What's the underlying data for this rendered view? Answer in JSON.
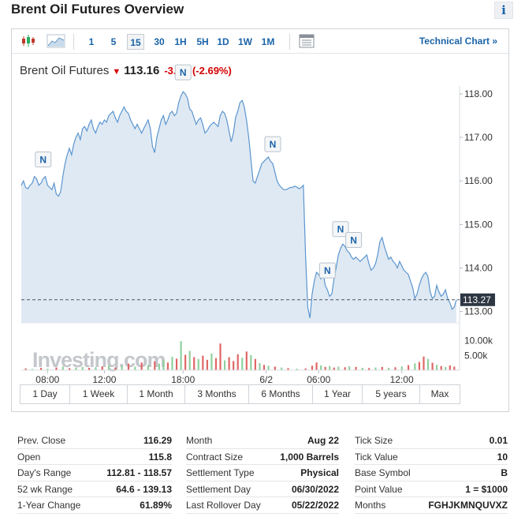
{
  "page": {
    "title": "Brent Oil Futures Overview",
    "info_label": "i"
  },
  "toolbar": {
    "intervals": [
      "1",
      "5",
      "15",
      "30",
      "1H",
      "5H",
      "1D",
      "1W",
      "1M"
    ],
    "active_interval": "15",
    "technical_chart_label": "Technical Chart »",
    "accent": "#1a63a8"
  },
  "quote": {
    "name": "Brent Oil Futures",
    "price": "113.16",
    "change": "-3.13",
    "change_pct": "(-2.69%)",
    "down_color": "#d40000"
  },
  "chart_data": {
    "type": "area",
    "y_ticks": [
      "118.00",
      "117.00",
      "116.00",
      "115.00",
      "114.00",
      "113.00"
    ],
    "ylim": [
      112.74,
      118.18
    ],
    "last_value": 113.27,
    "last_value_label": "113.27",
    "x_ticks": [
      "08:00",
      "12:00",
      "18:00",
      "6/2",
      "06:00",
      "12:00"
    ],
    "volume_ticks": [
      "10.00k",
      "5.00k"
    ],
    "watermark": "Investing.com",
    "news_marker_label": "N",
    "series": [
      {
        "values": [
          115.9,
          116.0,
          115.85,
          115.82,
          115.9,
          115.95,
          116.1,
          116.05,
          115.9,
          115.95,
          116.05,
          116.1,
          115.9,
          115.85,
          115.8,
          115.95,
          115.7,
          115.65,
          115.75,
          116.1,
          116.4,
          116.6,
          116.75,
          116.6,
          116.85,
          117.0,
          117.1,
          116.95,
          117.2,
          117.25,
          117.15,
          117.3,
          117.4,
          117.2,
          117.1,
          117.25,
          117.35,
          117.3,
          117.4,
          117.35,
          117.5,
          117.55,
          117.6,
          117.45,
          117.35,
          117.5,
          117.6,
          117.7,
          117.6,
          117.55,
          117.4,
          117.3,
          117.2,
          117.3,
          117.2,
          117.1,
          117.2,
          117.3,
          117.4,
          117.2,
          116.8,
          116.65,
          117.0,
          117.2,
          117.4,
          117.5,
          117.3,
          117.4,
          117.55,
          117.6,
          117.5,
          117.55,
          117.8,
          117.95,
          118.05,
          118.0,
          117.9,
          117.65,
          117.6,
          117.45,
          117.3,
          117.4,
          117.45,
          117.3,
          117.1,
          117.15,
          117.25,
          117.3,
          117.35,
          117.3,
          117.25,
          117.5,
          117.6,
          117.55,
          117.4,
          117.15,
          116.9,
          117.1,
          117.45,
          117.6,
          117.8,
          117.85,
          117.7,
          117.4,
          117.0,
          116.5,
          116.0,
          115.95,
          116.1,
          116.25,
          116.4,
          116.45,
          116.5,
          116.55,
          116.45,
          116.4,
          116.2,
          116.0,
          115.9,
          115.85,
          115.8,
          115.8,
          115.82,
          115.85,
          115.85,
          115.88,
          115.86,
          115.82,
          115.85,
          115.9,
          114.3,
          113.1,
          112.85,
          113.4,
          113.7,
          113.9,
          113.85,
          113.75,
          113.9,
          113.6,
          113.5,
          113.35,
          113.4,
          113.75,
          114.0,
          114.3,
          114.45,
          114.55,
          114.5,
          114.4,
          114.35,
          114.25,
          114.2,
          114.25,
          114.2,
          114.15,
          114.2,
          114.25,
          114.3,
          114.1,
          113.95,
          114.0,
          114.1,
          114.3,
          114.6,
          114.7,
          114.5,
          114.35,
          114.2,
          114.25,
          114.15,
          114.1,
          114.0,
          114.15,
          114.05,
          113.95,
          113.9,
          113.85,
          113.7,
          113.55,
          113.3,
          113.4,
          113.6,
          113.75,
          113.85,
          113.9,
          113.8,
          113.45,
          113.3,
          113.35,
          113.6,
          113.45,
          113.35,
          113.4,
          113.5,
          113.3,
          113.2,
          113.05,
          113.1,
          113.27
        ]
      }
    ],
    "news_markers": [
      {
        "x_index": 10,
        "label": "N"
      },
      {
        "x_index": 74,
        "label": "N"
      },
      {
        "x_index": 115,
        "label": "N"
      },
      {
        "x_index": 140,
        "label": "N"
      },
      {
        "x_index": 146,
        "label": "N"
      },
      {
        "x_index": 152,
        "label": "N"
      }
    ],
    "volume": {
      "ymax": 12000,
      "bars": [
        {
          "i": 2,
          "v": 600,
          "up": false
        },
        {
          "i": 5,
          "v": 400,
          "up": true
        },
        {
          "i": 9,
          "v": 800,
          "up": false
        },
        {
          "i": 12,
          "v": 500,
          "up": true
        },
        {
          "i": 16,
          "v": 900,
          "up": false
        },
        {
          "i": 19,
          "v": 1200,
          "up": true
        },
        {
          "i": 22,
          "v": 700,
          "up": false
        },
        {
          "i": 25,
          "v": 900,
          "up": true
        },
        {
          "i": 28,
          "v": 1100,
          "up": true
        },
        {
          "i": 31,
          "v": 800,
          "up": false
        },
        {
          "i": 34,
          "v": 1000,
          "up": true
        },
        {
          "i": 37,
          "v": 1300,
          "up": false
        },
        {
          "i": 40,
          "v": 1600,
          "up": true
        },
        {
          "i": 43,
          "v": 900,
          "up": false
        },
        {
          "i": 46,
          "v": 1400,
          "up": true
        },
        {
          "i": 49,
          "v": 2200,
          "up": false
        },
        {
          "i": 52,
          "v": 1200,
          "up": true
        },
        {
          "i": 55,
          "v": 2600,
          "up": false
        },
        {
          "i": 58,
          "v": 1800,
          "up": true
        },
        {
          "i": 61,
          "v": 3000,
          "up": false
        },
        {
          "i": 63,
          "v": 2200,
          "up": true
        },
        {
          "i": 65,
          "v": 3400,
          "up": true
        },
        {
          "i": 67,
          "v": 2600,
          "up": false
        },
        {
          "i": 69,
          "v": 4500,
          "up": true
        },
        {
          "i": 71,
          "v": 3900,
          "up": false
        },
        {
          "i": 73,
          "v": 9800,
          "up": true
        },
        {
          "i": 75,
          "v": 5200,
          "up": false
        },
        {
          "i": 77,
          "v": 6500,
          "up": true
        },
        {
          "i": 79,
          "v": 4400,
          "up": false
        },
        {
          "i": 81,
          "v": 3800,
          "up": true
        },
        {
          "i": 83,
          "v": 4900,
          "up": false
        },
        {
          "i": 85,
          "v": 3500,
          "up": false
        },
        {
          "i": 87,
          "v": 5600,
          "up": true
        },
        {
          "i": 89,
          "v": 4100,
          "up": false
        },
        {
          "i": 91,
          "v": 9000,
          "up": false
        },
        {
          "i": 93,
          "v": 3300,
          "up": true
        },
        {
          "i": 95,
          "v": 4400,
          "up": false
        },
        {
          "i": 97,
          "v": 3100,
          "up": false
        },
        {
          "i": 99,
          "v": 5400,
          "up": false
        },
        {
          "i": 101,
          "v": 4200,
          "up": true
        },
        {
          "i": 103,
          "v": 6300,
          "up": false
        },
        {
          "i": 105,
          "v": 5100,
          "up": true
        },
        {
          "i": 107,
          "v": 3800,
          "up": false
        },
        {
          "i": 109,
          "v": 2400,
          "up": true
        },
        {
          "i": 111,
          "v": 1800,
          "up": false
        },
        {
          "i": 113,
          "v": 1500,
          "up": true
        },
        {
          "i": 116,
          "v": 1200,
          "up": false
        },
        {
          "i": 119,
          "v": 900,
          "up": true
        },
        {
          "i": 122,
          "v": 700,
          "up": false
        },
        {
          "i": 126,
          "v": 500,
          "up": true
        },
        {
          "i": 130,
          "v": 600,
          "up": false
        },
        {
          "i": 133,
          "v": 1500,
          "up": false
        },
        {
          "i": 135,
          "v": 2600,
          "up": false
        },
        {
          "i": 137,
          "v": 1600,
          "up": true
        },
        {
          "i": 139,
          "v": 1100,
          "up": false
        },
        {
          "i": 141,
          "v": 1400,
          "up": true
        },
        {
          "i": 143,
          "v": 900,
          "up": false
        },
        {
          "i": 145,
          "v": 1200,
          "up": true
        },
        {
          "i": 148,
          "v": 1000,
          "up": false
        },
        {
          "i": 150,
          "v": 1300,
          "up": true
        },
        {
          "i": 153,
          "v": 1100,
          "up": false
        },
        {
          "i": 156,
          "v": 800,
          "up": true
        },
        {
          "i": 159,
          "v": 700,
          "up": false
        },
        {
          "i": 162,
          "v": 900,
          "up": true
        },
        {
          "i": 165,
          "v": 1100,
          "up": false
        },
        {
          "i": 168,
          "v": 800,
          "up": true
        },
        {
          "i": 171,
          "v": 1000,
          "up": false
        },
        {
          "i": 174,
          "v": 1300,
          "up": true
        },
        {
          "i": 177,
          "v": 1700,
          "up": false
        },
        {
          "i": 180,
          "v": 2300,
          "up": true
        },
        {
          "i": 182,
          "v": 2800,
          "up": false
        },
        {
          "i": 184,
          "v": 4600,
          "up": false
        },
        {
          "i": 186,
          "v": 3800,
          "up": true
        },
        {
          "i": 188,
          "v": 2500,
          "up": false
        },
        {
          "i": 190,
          "v": 1800,
          "up": true
        },
        {
          "i": 192,
          "v": 1400,
          "up": false
        },
        {
          "i": 194,
          "v": 1100,
          "up": true
        },
        {
          "i": 196,
          "v": 1600,
          "up": false
        },
        {
          "i": 198,
          "v": 1200,
          "up": false
        }
      ]
    }
  },
  "ranges": [
    "1 Day",
    "1 Week",
    "1 Month",
    "3 Months",
    "6 Months",
    "1 Year",
    "5 years",
    "Max"
  ],
  "stats": {
    "col1": [
      {
        "k": "Prev. Close",
        "v": "116.29"
      },
      {
        "k": "Open",
        "v": "115.8"
      },
      {
        "k": "Day's Range",
        "v": "112.81 - 118.57"
      },
      {
        "k": "52 wk Range",
        "v": "64.6 - 139.13"
      },
      {
        "k": "1-Year Change",
        "v": "61.89%"
      }
    ],
    "col2": [
      {
        "k": "Month",
        "v": "Aug 22"
      },
      {
        "k": "Contract Size",
        "v": "1,000 Barrels"
      },
      {
        "k": "Settlement Type",
        "v": "Physical"
      },
      {
        "k": "Settlement Day",
        "v": "06/30/2022"
      },
      {
        "k": "Last Rollover Day",
        "v": "05/22/2022"
      }
    ],
    "col3": [
      {
        "k": "Tick Size",
        "v": "0.01"
      },
      {
        "k": "Tick Value",
        "v": "10"
      },
      {
        "k": "Base Symbol",
        "v": "B"
      },
      {
        "k": "Point Value",
        "v": "1 = $1000"
      },
      {
        "k": "Months",
        "v": "FGHJKMNQUVXZ"
      }
    ]
  }
}
